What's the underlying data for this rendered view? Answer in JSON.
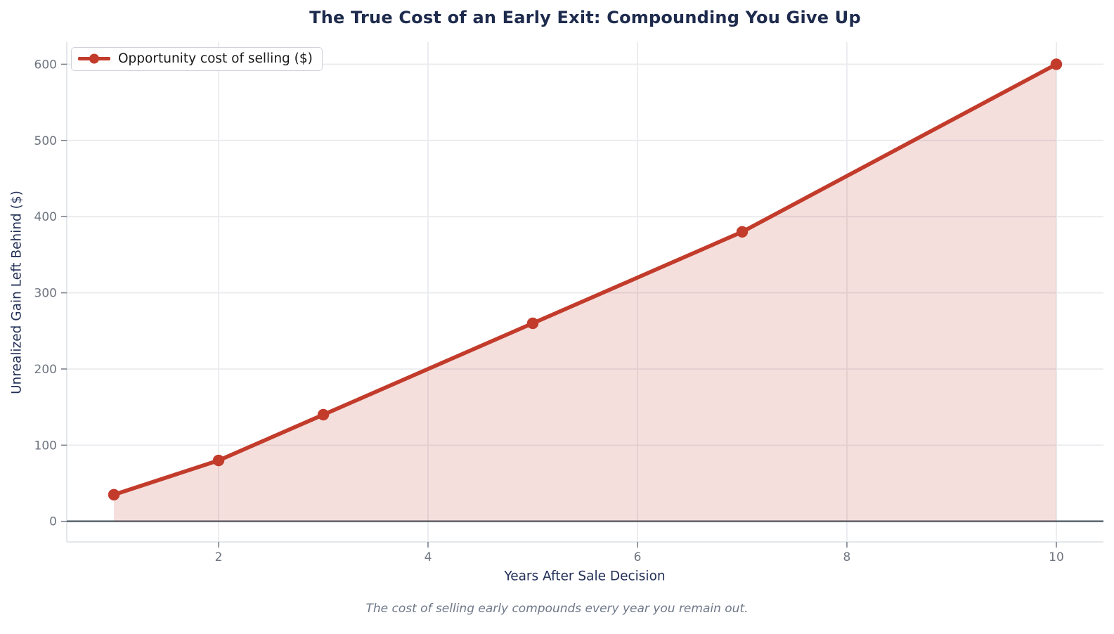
{
  "chart_data": {
    "type": "area",
    "title": "The True Cost of an Early Exit: Compounding You Give Up",
    "xlabel": "Years After Sale Decision",
    "ylabel": "Unrealized Gain Left Behind ($)",
    "footnote": "The cost of selling early compounds every year you remain out.",
    "x": [
      1,
      2,
      3,
      5,
      7,
      10
    ],
    "series": [
      {
        "name": "Opportunity cost of selling ($)",
        "values": [
          35,
          80,
          140,
          260,
          380,
          600
        ]
      }
    ],
    "x_ticks": [
      2,
      4,
      6,
      8,
      10
    ],
    "y_ticks": [
      0,
      100,
      200,
      300,
      400,
      500,
      600
    ],
    "xlim": [
      0.55,
      10.45
    ],
    "ylim": [
      -27,
      629
    ],
    "grid": true,
    "legend_position": "upper-left",
    "zero_baseline": true,
    "colors": {
      "line": "#c23b2b",
      "marker": "#c23b2b",
      "fill": "#c23b2b",
      "fill_opacity": 0.16,
      "grid": "#e9ebee",
      "spine": "#dcdfe4",
      "zero_line": "#5f6a73",
      "tick_text": "#6e7580",
      "title_text": "#1e2b4d",
      "axis_label_text": "#243158",
      "caption_text": "#6f7889"
    }
  }
}
